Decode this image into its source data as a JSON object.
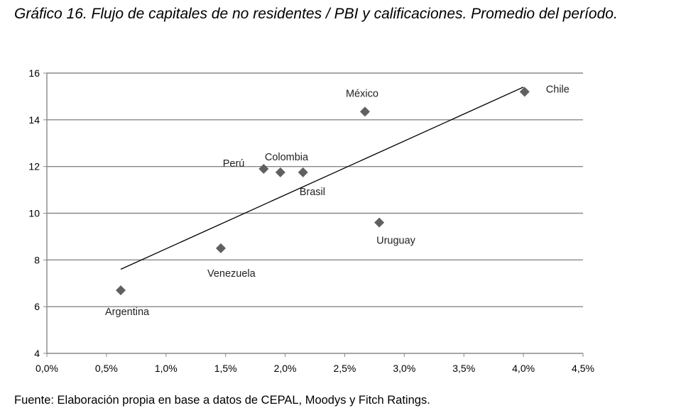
{
  "title": "Gráfico 16. Flujo de capitales de no residentes / PBI y calificaciones. Promedio del período.",
  "source": "Fuente: Elaboración propia en base a datos de CEPAL, Moodys y Fitch Ratings.",
  "chart_data": {
    "type": "scatter",
    "xlim": [
      0.0,
      4.5
    ],
    "ylim": [
      4,
      16
    ],
    "x_ticks": [
      "0,0%",
      "0,5%",
      "1,0%",
      "1,5%",
      "2,0%",
      "2,5%",
      "3,0%",
      "3,5%",
      "4,0%",
      "4,5%"
    ],
    "y_ticks": [
      "4",
      "6",
      "8",
      "10",
      "12",
      "14",
      "16"
    ],
    "grid": "horizontal",
    "marker_color": "#606060",
    "points": [
      {
        "label": "Argentina",
        "x": 0.62,
        "y": 6.7
      },
      {
        "label": "Venezuela",
        "x": 1.46,
        "y": 8.5
      },
      {
        "label": "Perú",
        "x": 1.82,
        "y": 11.9
      },
      {
        "label": "Colombia",
        "x": 1.96,
        "y": 11.75
      },
      {
        "label": "Brasil",
        "x": 2.15,
        "y": 11.75
      },
      {
        "label": "México",
        "x": 2.67,
        "y": 14.35
      },
      {
        "label": "Uruguay",
        "x": 2.79,
        "y": 9.6
      },
      {
        "label": "Chile",
        "x": 4.01,
        "y": 15.2
      }
    ],
    "trendline": {
      "x": [
        0.62,
        4.0
      ],
      "y": [
        7.6,
        15.4
      ]
    }
  }
}
